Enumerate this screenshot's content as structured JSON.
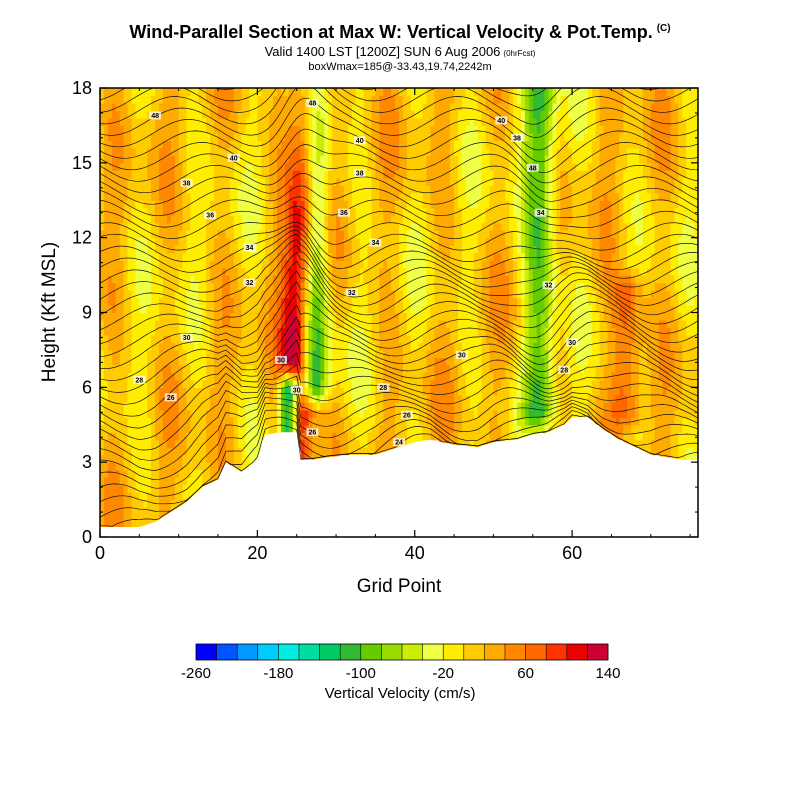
{
  "header": {
    "title": "Wind-Parallel Section at Max W: Vertical Velocity & Pot.Temp.",
    "copyright": "(C)",
    "subtitle": "Valid 1400 LST [1200Z] SUN 6 Aug 2006",
    "subtitle_tag": "(0hrFcst)",
    "subtitle2": "boxWmax=185@-33.43,19.74,2242m"
  },
  "chart_data": {
    "type": "heatmap",
    "title": "Wind-Parallel Section at Max W: Vertical Velocity & Pot.Temp.",
    "xlabel": "Grid Point",
    "ylabel": "Height (Kft MSL)",
    "xlim": [
      0,
      76
    ],
    "ylim": [
      0,
      18
    ],
    "x_ticks": [
      "0",
      "20",
      "40",
      "60"
    ],
    "x_tick_values": [
      0,
      20,
      40,
      60
    ],
    "y_ticks": [
      "0",
      "3",
      "6",
      "9",
      "12",
      "15",
      "18"
    ],
    "y_tick_values": [
      0,
      3,
      6,
      9,
      12,
      15,
      18
    ],
    "colorbar": {
      "label": "Vertical Velocity (cm/s)",
      "tick_labels": [
        "-260",
        "-180",
        "-100",
        "-20",
        "60",
        "140"
      ],
      "tick_values": [
        -260,
        -180,
        -100,
        -20,
        60,
        140
      ],
      "min": -260,
      "step": 20,
      "colors": [
        "#0000ff",
        "#0055ff",
        "#0099ff",
        "#00ccff",
        "#00eedd",
        "#00dda0",
        "#00cc66",
        "#33bb33",
        "#66cc00",
        "#99dd00",
        "#ccee00",
        "#eeff44",
        "#ffee00",
        "#ffcc00",
        "#ffaa00",
        "#ff8800",
        "#ff6600",
        "#ff3300",
        "#ee0000",
        "#cc0033"
      ]
    },
    "velocity_features": [
      {
        "kind": "updraft",
        "x": 25.5,
        "height_range": [
          3,
          18
        ],
        "peak": 185
      },
      {
        "kind": "downdraft",
        "x": 24,
        "height_range": [
          4,
          6
        ],
        "peak": -260
      },
      {
        "kind": "downdraft",
        "x": 27,
        "height_range": [
          6,
          18
        ],
        "peak": -140
      },
      {
        "kind": "downdraft",
        "x": 56,
        "height_range": [
          5,
          18
        ],
        "peak": -100
      },
      {
        "kind": "updraft",
        "x": 67,
        "height_range": [
          5,
          10
        ],
        "peak": 80
      }
    ],
    "terrain": {
      "x": [
        0,
        5,
        7,
        11,
        13,
        15,
        16,
        18,
        20,
        21,
        23,
        25,
        25.5,
        26,
        27,
        29,
        32,
        35,
        38,
        40,
        42,
        45,
        48,
        50,
        53,
        55,
        57,
        59,
        60,
        62,
        64,
        66,
        68,
        70,
        72,
        74,
        76
      ],
      "height": [
        0.4,
        0.4,
        0.6,
        1.4,
        2.0,
        2.3,
        3.0,
        2.6,
        3.1,
        4.1,
        4.2,
        4.2,
        3.1,
        3.1,
        3.1,
        3.2,
        3.3,
        3.3,
        3.6,
        3.8,
        3.9,
        3.7,
        3.6,
        3.8,
        3.9,
        4.1,
        4.2,
        4.5,
        4.8,
        4.8,
        4.3,
        3.9,
        3.6,
        3.3,
        3.2,
        3.1,
        3.1
      ]
    },
    "theta_contours": {
      "units": "K",
      "labels": [
        {
          "text": "48",
          "x": 7,
          "y": 16.9
        },
        {
          "text": "40",
          "x": 17,
          "y": 15.2
        },
        {
          "text": "38",
          "x": 11,
          "y": 14.2
        },
        {
          "text": "36",
          "x": 14,
          "y": 12.9
        },
        {
          "text": "34",
          "x": 19,
          "y": 11.6
        },
        {
          "text": "32",
          "x": 19,
          "y": 10.2
        },
        {
          "text": "30",
          "x": 11,
          "y": 8.0
        },
        {
          "text": "28",
          "x": 5,
          "y": 6.3
        },
        {
          "text": "26",
          "x": 9,
          "y": 5.6
        },
        {
          "text": "48",
          "x": 27,
          "y": 17.4
        },
        {
          "text": "40",
          "x": 33,
          "y": 15.9
        },
        {
          "text": "38",
          "x": 33,
          "y": 14.6
        },
        {
          "text": "36",
          "x": 31,
          "y": 13.0
        },
        {
          "text": "34",
          "x": 35,
          "y": 11.8
        },
        {
          "text": "32",
          "x": 32,
          "y": 9.8
        },
        {
          "text": "30",
          "x": 23,
          "y": 7.1
        },
        {
          "text": "30",
          "x": 25,
          "y": 5.9
        },
        {
          "text": "26",
          "x": 27,
          "y": 4.2
        },
        {
          "text": "28",
          "x": 36,
          "y": 6.0
        },
        {
          "text": "26",
          "x": 39,
          "y": 4.9
        },
        {
          "text": "24",
          "x": 38,
          "y": 3.8
        },
        {
          "text": "30",
          "x": 46,
          "y": 7.3
        },
        {
          "text": "40",
          "x": 51,
          "y": 16.7
        },
        {
          "text": "38",
          "x": 53,
          "y": 16.0
        },
        {
          "text": "48",
          "x": 55,
          "y": 14.8
        },
        {
          "text": "34",
          "x": 56,
          "y": 13.0
        },
        {
          "text": "32",
          "x": 57,
          "y": 10.1
        },
        {
          "text": "30",
          "x": 60,
          "y": 7.8
        },
        {
          "text": "28",
          "x": 59,
          "y": 6.7
        }
      ]
    }
  }
}
